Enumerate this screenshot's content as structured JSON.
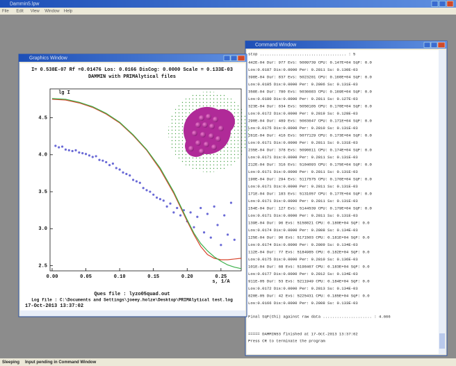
{
  "app": {
    "title": "Dammin5.lpw",
    "menu": [
      "File",
      "Edit",
      "View",
      "Window",
      "Help"
    ],
    "status": [
      "Sleeping",
      "Input pending in Command Window"
    ]
  },
  "graphics_window": {
    "title": "Graphics Window",
    "footer": [
      "Ques file :   lyzo05quad.out",
      "Log file :  C:\\Documents and Settings\\joeey.holze\\Desktop\\PRIMAlytical test.log",
      "17-Oct-2013    13:37:02"
    ]
  },
  "command_window": {
    "title": "Command Window",
    "lines": [
      "stop ..................................... : 5",
      "442E-04 Dur:    977 Evs:  5009739 CPU: 0.147E+04 SqF: 0.0",
      " Los:0.0187 Dis:0.0000 Per:  0.2811 Su: 0.130E-03",
      "398E-04 Dur:    837 Evs:  5023201 CPU: 0.160E+04 SqF: 0.0",
      " Los:0.0185 Dis:0.0000 Per:  0.2806 Su: 0.131E-03",
      "358E-04 Dur:    780 Evs:  5036683 CPU: 0.169E+04 SqF: 0.0",
      " Los:0.0180 Dis:0.0000 Per:  0.2811 Su: 0.127E-03",
      "323E-04 Dur:    634 Evs:  5050165 CPU: 0.170E+04 SqF: 0.0",
      " Los:0.0172 Dis:0.0000 Per:  0.2819 Su: 0.128E-03",
      "290E-04 Dur:    489 Evs:  5063647 CPU: 0.171E+04 SqF: 0.0",
      " Los:0.0175 Dis:0.0000 Per:  0.2810 Su: 0.131E-03",
      "261E-04 Dur:    416 Evs:  5077129 CPU: 0.173E+04 SqF: 0.0",
      " Los:0.0171 Dis:0.0000 Per:  0.2811 Su: 0.131E-03",
      "235E-04 Dur:    378 Evs:  5090611 CPU: 0.174E+04 SqF: 0.0",
      " Los:0.0171 Dis:0.0000 Per:  0.2811 Su: 0.131E-03",
      "212E-04 Dur:    316 Evs:  5104093 CPU: 0.175E+04 SqF: 0.0",
      " Los:0.0171 Dis:0.0000 Per:  0.2811 Su: 0.131E-03",
      "190E-04 Dur:    294 Evs:  5117575 CPU: 0.176E+04 SqF: 0.0",
      " Los:0.0171 Dis:0.0000 Per:  0.2811 Su: 0.131E-03",
      "171E-04 Dur:    183 Evs:  5131057 CPU: 0.177E+04 SqF: 0.0",
      " Los:0.0171 Dis:0.0000 Per:  0.2811 Su: 0.131E-03",
      "154E-04 Dur:    127 Evs:  5144539 CPU: 0.179E+04 SqF: 0.0",
      " Los:0.0171 Dis:0.0000 Per:  0.2811 Su: 0.131E-03",
      "139E-04 Dur:     96 Evs:  5158021 CPU: 0.180E+04 SqF: 0.0",
      " Los:0.0174 Dis:0.0000 Per:  0.2808 Su: 0.134E-03",
      "125E-04 Dur:     90 Evs:  5171503 CPU: 0.181E+04 SqF: 0.0",
      " Los:0.0174 Dis:0.0000 Per:  0.2809 Su: 0.134E-03",
      "112E-04 Dur:     77 Evs:  5184985 CPU: 0.182E+04 SqF: 0.0",
      " Los:0.0175 Dis:0.0000 Per:  0.2810 Su: 0.136E-03",
      "101E-04 Dur:     68 Evs:  5198467 CPU: 0.183E+04 SqF: 0.0",
      " Los:0.0177 Dis:0.0000 Per:  0.2812 Su: 0.134E-03",
      "911E-05 Dur:     53 Evs:  5211949 CPU: 0.184E+04 SqF: 0.0",
      " Los:0.0172 Dis:0.0000 Per:  0.2813 Su: 0.134E-03",
      "820E-05 Dur:     42 Evs:  5225431 CPU: 0.185E+04 SqF: 0.0",
      " Los:0.0166 Dis:0.0000 Per:  0.2808 Su: 0.133E-03",
      "Final SqF(Chi) against raw data ..................... : 4.666",
      "===== DAMMIN53 finished at    17-Oct-2013    13:37:02",
      "Press CR to terminate the program"
    ]
  },
  "chart_data": {
    "type": "line",
    "title": "I= 0.538E-07 Rf =0.01476  Los: 0.0166 DisCog: 0.0000 Scale =  0.133E-03",
    "subtitle": "DAMMIN with PRIMAlytical files",
    "xlabel": "s, 1/A",
    "ylabel": "lg I",
    "xlim": [
      0,
      0.28
    ],
    "ylim": [
      2.43,
      4.89
    ],
    "xticks": [
      {
        "value": 0,
        "label": "0.00"
      },
      0.05,
      {
        "value": 0.1,
        "label": "0.10"
      },
      0.15,
      {
        "value": 0.2,
        "label": "0.20"
      },
      0.25
    ],
    "yticks": [
      2.5,
      {
        "value": 3,
        "label": "3.0"
      },
      3.5,
      {
        "value": 4,
        "label": "4.0"
      },
      4.5
    ],
    "series": [
      {
        "style": "markers",
        "color": "#6a6ad6",
        "x": [
          0.005,
          0.01,
          0.015,
          0.02,
          0.025,
          0.03,
          0.035,
          0.04,
          0.045,
          0.05,
          0.055,
          0.06,
          0.065,
          0.07,
          0.075,
          0.08,
          0.085,
          0.09,
          0.095,
          0.1,
          0.105,
          0.11,
          0.115,
          0.12,
          0.125,
          0.13,
          0.135,
          0.14,
          0.145,
          0.15,
          0.155,
          0.16,
          0.165,
          0.17,
          0.175,
          0.18,
          0.185,
          0.19,
          0.195,
          0.2,
          0.205,
          0.21,
          0.215,
          0.22,
          0.225,
          0.23,
          0.235,
          0.24,
          0.245,
          0.25,
          0.255,
          0.26,
          0.265,
          0.27
        ],
        "values": [
          4.12,
          4.1,
          4.11,
          4.07,
          4.06,
          4.05,
          4.06,
          4.03,
          4.02,
          4.01,
          3.99,
          3.97,
          3.98,
          3.93,
          3.92,
          3.9,
          3.86,
          3.88,
          3.82,
          3.8,
          3.76,
          3.74,
          3.72,
          3.66,
          3.64,
          3.62,
          3.55,
          3.52,
          3.5,
          3.46,
          3.42,
          3.4,
          3.38,
          3.3,
          3.34,
          3.22,
          3.28,
          3.18,
          3.25,
          3.1,
          3.22,
          3.02,
          3.16,
          3.28,
          2.95,
          3.2,
          2.88,
          3.3,
          3.05,
          2.78,
          3.18,
          2.92,
          3.35,
          2.85
        ]
      },
      {
        "style": "line",
        "color": "#d8442c",
        "x": [
          0,
          0.02,
          0.04,
          0.06,
          0.08,
          0.1,
          0.12,
          0.14,
          0.16,
          0.18,
          0.2,
          0.21,
          0.22,
          0.23,
          0.24,
          0.25,
          0.26,
          0.27,
          0.28
        ],
        "values": [
          4.75,
          4.74,
          4.7,
          4.64,
          4.55,
          4.43,
          4.26,
          4.06,
          3.8,
          3.48,
          3.1,
          2.92,
          2.76,
          2.65,
          2.6,
          2.58,
          2.58,
          2.59,
          2.6
        ]
      },
      {
        "style": "line",
        "color": "#3cb04a",
        "x": [
          0,
          0.02,
          0.04,
          0.06,
          0.08,
          0.1,
          0.12,
          0.14,
          0.16,
          0.18,
          0.2,
          0.21,
          0.22,
          0.23,
          0.24,
          0.25,
          0.26,
          0.27,
          0.28
        ],
        "values": [
          4.76,
          4.75,
          4.71,
          4.65,
          4.56,
          4.44,
          4.27,
          4.07,
          3.82,
          3.5,
          3.12,
          2.94,
          2.8,
          2.7,
          2.62,
          2.56,
          2.51,
          2.48,
          2.46
        ]
      }
    ]
  }
}
